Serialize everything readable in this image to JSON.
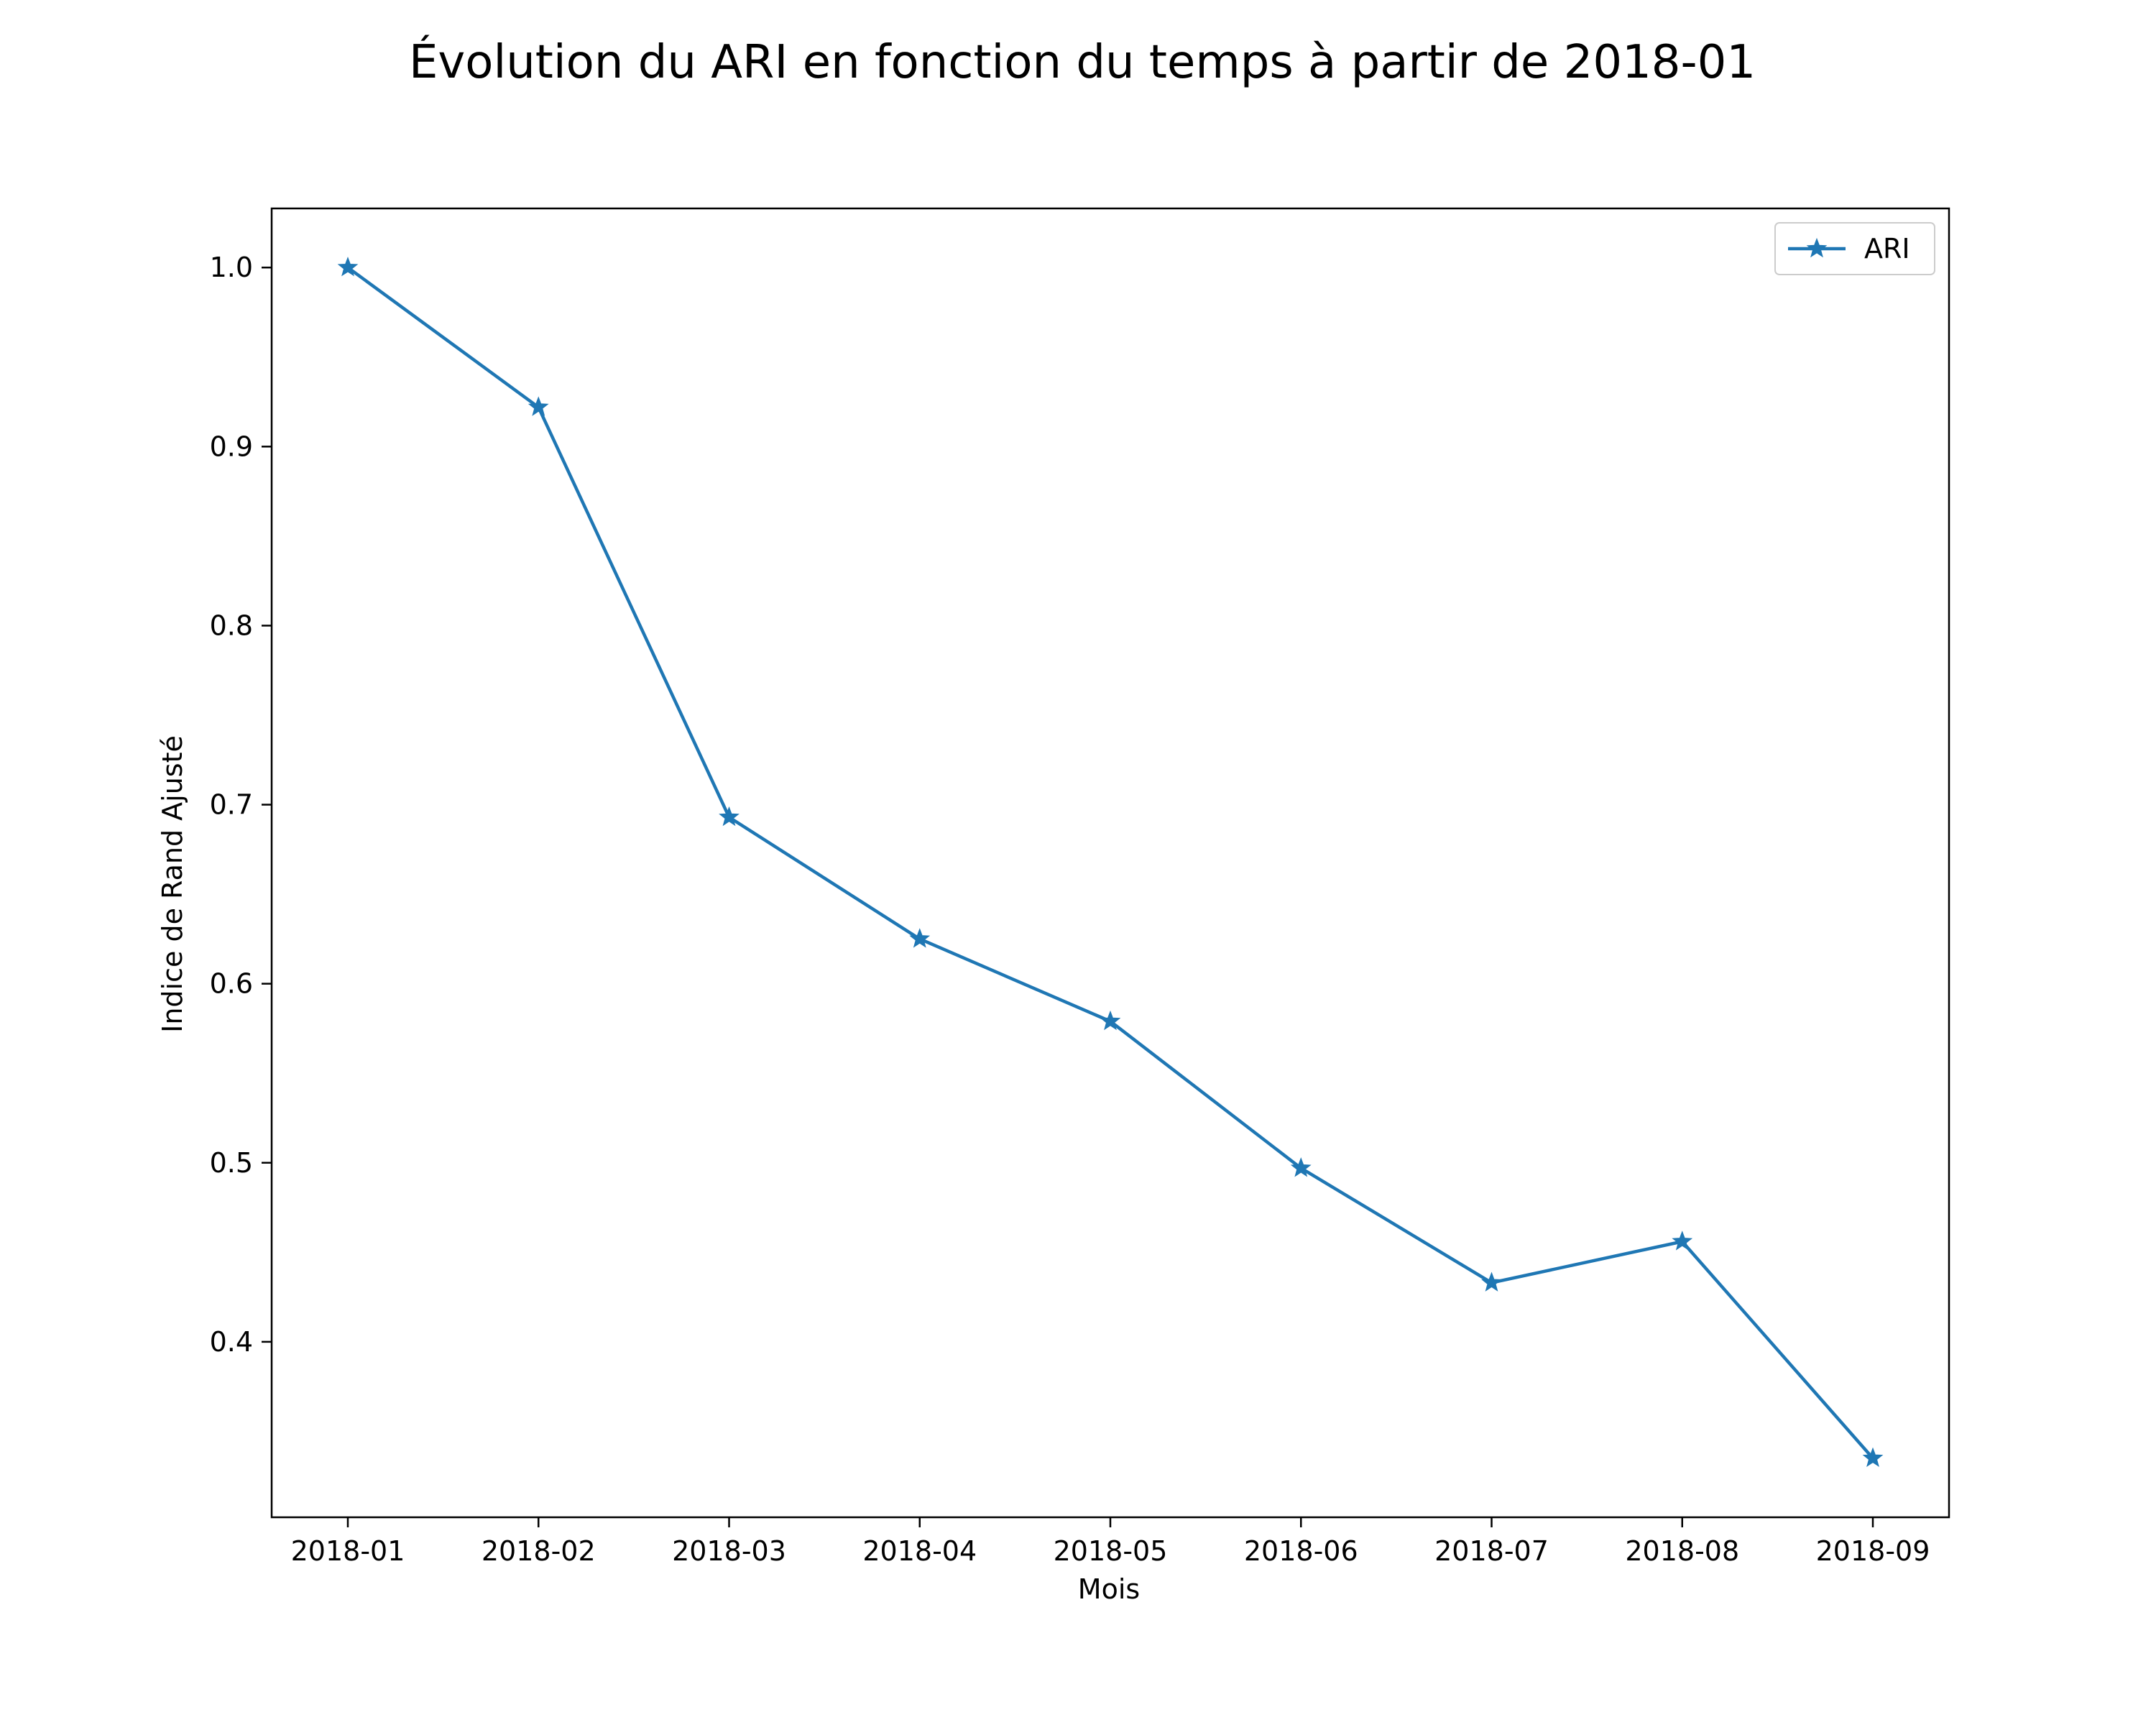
{
  "chart_data": {
    "type": "line",
    "title": "Évolution du ARI en fonction du temps à partir de 2018-01",
    "xlabel": "Mois",
    "ylabel": "Indice de Rand Ajusté",
    "categories": [
      "2018-01",
      "2018-02",
      "2018-03",
      "2018-04",
      "2018-05",
      "2018-06",
      "2018-07",
      "2018-08",
      "2018-09"
    ],
    "series": [
      {
        "name": "ARI",
        "values": [
          1.0,
          0.922,
          0.693,
          0.625,
          0.579,
          0.497,
          0.433,
          0.456,
          0.335
        ],
        "color": "#1f77b4",
        "marker": "star"
      }
    ],
    "yticks": [
      0.4,
      0.5,
      0.6,
      0.7,
      0.8,
      0.9,
      1.0
    ],
    "ytick_labels": [
      "0.4",
      "0.5",
      "0.6",
      "0.7",
      "0.8",
      "0.9",
      "1.0"
    ],
    "ylim": [
      0.302,
      1.033
    ],
    "grid": false,
    "legend": "top-right"
  }
}
